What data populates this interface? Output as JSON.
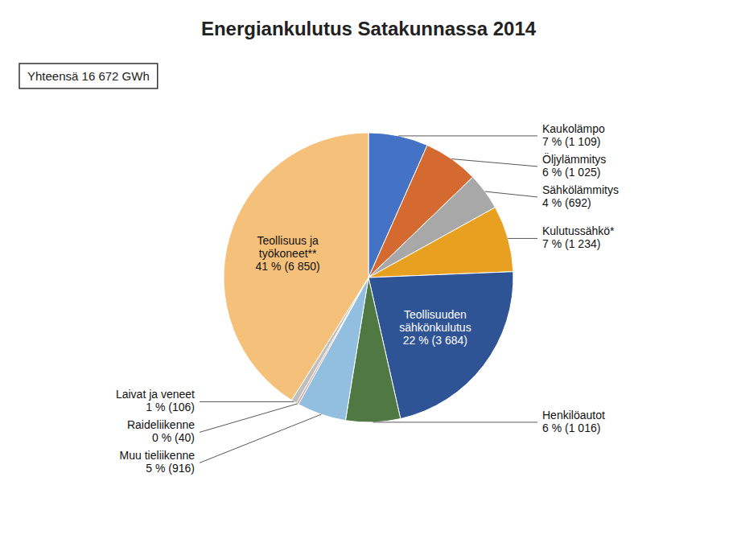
{
  "chart_data": {
    "type": "pie",
    "title": "Energiankulutus Satakunnassa 2014",
    "annotations": [
      "Yhteensä 16 672 GWh"
    ],
    "categories": [
      "Kaukolämpo\n7 % (1 109)",
      "Öljylämmitys\n6 % (1 025)",
      "Sähkölämmitys\n4 % (692)",
      "Kulutussähkö*\n7 % (1 234)",
      "Teollisuuden\nsähkönkulutus\n22 % (3 684)",
      "Henkilöautot\n6 % (1 016)",
      "Muu tieliikenne\n5 % (916)",
      "Raideliikenne\n0 % (40)",
      "Laivat ja veneet\n1 % (106)",
      "Teollisuus ja\ntyökoneet**\n41 % (6 850)"
    ],
    "values": [
      1109,
      1025,
      692,
      1234,
      3684,
      1016,
      916,
      40,
      106,
      6850
    ],
    "colors": [
      "#4472C4",
      "#D46A30",
      "#A8A8A8",
      "#E8A020",
      "#2F5496",
      "#4F7842",
      "#92BFDF",
      "#D8A898",
      "#BFBFBF",
      "#F5C07A"
    ]
  }
}
